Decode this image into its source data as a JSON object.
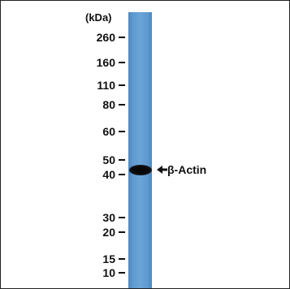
{
  "figure": {
    "unit_label": "(kDa)",
    "markers": [
      {
        "label": "260",
        "kda": 260
      },
      {
        "label": "160",
        "kda": 160
      },
      {
        "label": "110",
        "kda": 110
      },
      {
        "label": "80",
        "kda": 80
      },
      {
        "label": "60",
        "kda": 60
      },
      {
        "label": "50",
        "kda": 50
      },
      {
        "label": "40",
        "kda": 40
      },
      {
        "label": "30",
        "kda": 30
      },
      {
        "label": "20",
        "kda": 20
      },
      {
        "label": "15",
        "kda": 15
      },
      {
        "label": "10",
        "kda": 10
      }
    ],
    "band": {
      "label": "β-Actin"
    },
    "colors": {
      "lane": "#6aa4d8",
      "band": "#0b0b0b",
      "text": "#111111",
      "border": "#222222"
    }
  }
}
